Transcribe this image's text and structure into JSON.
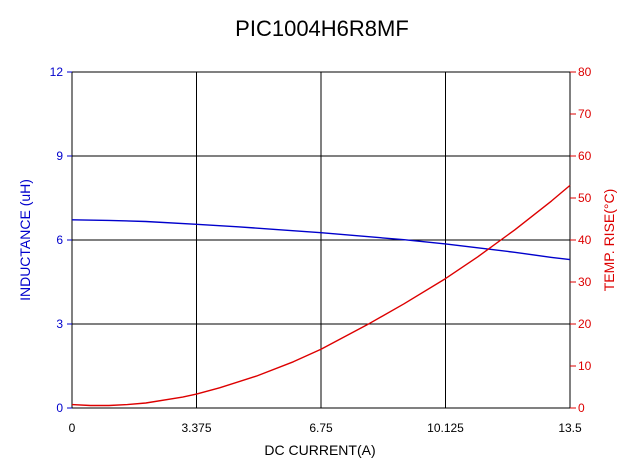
{
  "chart_data": {
    "type": "line",
    "title": "PIC1004H6R8MF",
    "xlabel": "DC CURRENT(A)",
    "ylabel_left": "INDUCTANCE (uH)",
    "ylabel_right": "TEMP. RISE(°C)",
    "xlim": [
      0,
      13.5
    ],
    "ylim_left": [
      0,
      12
    ],
    "ylim_right": [
      0,
      80
    ],
    "x_ticks": [
      "0",
      "3.375",
      "6.75",
      "10.125",
      "13.5"
    ],
    "y_left_ticks": [
      "0",
      "3",
      "6",
      "9",
      "12"
    ],
    "y_right_ticks": [
      "0",
      "10",
      "20",
      "30",
      "40",
      "50",
      "60",
      "70",
      "80"
    ],
    "grid": true,
    "colors": {
      "inductance": "#0000cc",
      "temperature": "#dd0000",
      "grid": "#000000"
    },
    "series": [
      {
        "axis": "left",
        "color": "#0000cc",
        "x": [
          0,
          1.0,
          2.0,
          3.375,
          4.5,
          5.5,
          6.75,
          8.0,
          9.0,
          10.125,
          11.0,
          12.0,
          13.0,
          13.5
        ],
        "y": [
          6.72,
          6.7,
          6.66,
          6.56,
          6.47,
          6.38,
          6.26,
          6.12,
          6.01,
          5.86,
          5.72,
          5.56,
          5.38,
          5.3
        ]
      },
      {
        "axis": "right",
        "color": "#dd0000",
        "x": [
          0,
          0.5,
          1.0,
          1.5,
          2.0,
          3.0,
          3.375,
          4.0,
          5.0,
          6.0,
          6.75,
          8.0,
          9.0,
          10.125,
          11.0,
          12.0,
          13.0,
          13.5
        ],
        "y": [
          0.8,
          0.6,
          0.6,
          0.8,
          1.2,
          2.6,
          3.3,
          4.8,
          7.6,
          11.0,
          14.0,
          19.8,
          24.8,
          30.8,
          36.0,
          42.4,
          49.3,
          53.0
        ]
      }
    ]
  }
}
